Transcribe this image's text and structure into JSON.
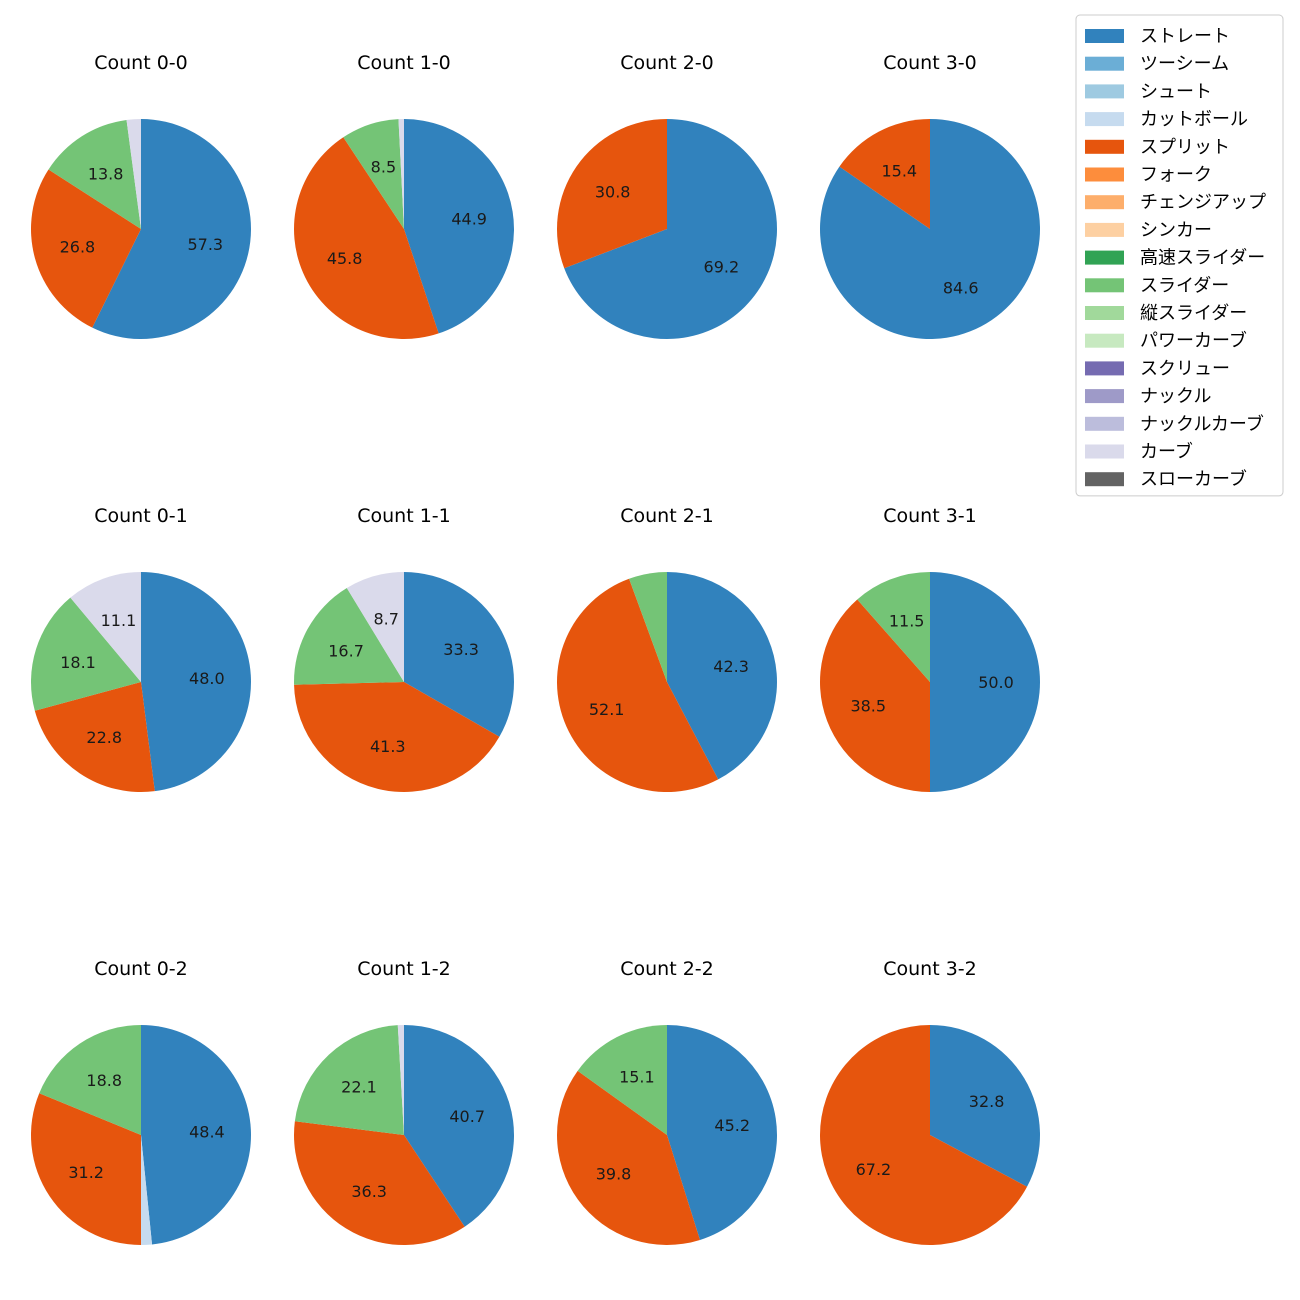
{
  "chart_data": {
    "type": "pie",
    "legend": {
      "placement": "top-right",
      "entries": [
        {
          "name": "ストレート",
          "color": "#3182bd"
        },
        {
          "name": "ツーシーム",
          "color": "#6baed6"
        },
        {
          "name": "シュート",
          "color": "#9ecae1"
        },
        {
          "name": "カットボール",
          "color": "#c6dbef"
        },
        {
          "name": "スプリット",
          "color": "#e6550d"
        },
        {
          "name": "フォーク",
          "color": "#fd8d3c"
        },
        {
          "name": "チェンジアップ",
          "color": "#fdae6b"
        },
        {
          "name": "シンカー",
          "color": "#fdd0a2"
        },
        {
          "name": "高速スライダー",
          "color": "#31a354"
        },
        {
          "name": "スライダー",
          "color": "#74c476"
        },
        {
          "name": "縦スライダー",
          "color": "#a1d99b"
        },
        {
          "name": "パワーカーブ",
          "color": "#c7e9c0"
        },
        {
          "name": "スクリュー",
          "color": "#756bb1"
        },
        {
          "name": "ナックル",
          "color": "#9e9ac8"
        },
        {
          "name": "ナックルカーブ",
          "color": "#bcbddc"
        },
        {
          "name": "カーブ",
          "color": "#dadaeb"
        },
        {
          "name": "スローカーブ",
          "color": "#636363"
        }
      ]
    },
    "pies": [
      {
        "title": "Count 0-0",
        "slices": [
          {
            "pitch": "ストレート",
            "value": 57.3,
            "label": "57.3"
          },
          {
            "pitch": "スプリット",
            "value": 26.8,
            "label": "26.8"
          },
          {
            "pitch": "スライダー",
            "value": 13.8,
            "label": "13.8"
          },
          {
            "pitch": "カーブ",
            "value": 2.1,
            "label": ""
          }
        ]
      },
      {
        "title": "Count 1-0",
        "slices": [
          {
            "pitch": "ストレート",
            "value": 44.9,
            "label": "44.9"
          },
          {
            "pitch": "スプリット",
            "value": 45.8,
            "label": "45.8"
          },
          {
            "pitch": "スライダー",
            "value": 8.5,
            "label": "8.5"
          },
          {
            "pitch": "カーブ",
            "value": 0.8,
            "label": ""
          }
        ]
      },
      {
        "title": "Count 2-0",
        "slices": [
          {
            "pitch": "ストレート",
            "value": 69.2,
            "label": "69.2"
          },
          {
            "pitch": "スプリット",
            "value": 30.8,
            "label": "30.8"
          }
        ]
      },
      {
        "title": "Count 3-0",
        "slices": [
          {
            "pitch": "ストレート",
            "value": 84.6,
            "label": "84.6"
          },
          {
            "pitch": "スプリット",
            "value": 15.4,
            "label": "15.4"
          }
        ]
      },
      {
        "title": "Count 0-1",
        "slices": [
          {
            "pitch": "ストレート",
            "value": 48.0,
            "label": "48.0"
          },
          {
            "pitch": "スプリット",
            "value": 22.8,
            "label": "22.8"
          },
          {
            "pitch": "スライダー",
            "value": 18.1,
            "label": "18.1"
          },
          {
            "pitch": "カーブ",
            "value": 11.1,
            "label": "11.1"
          }
        ]
      },
      {
        "title": "Count 1-1",
        "slices": [
          {
            "pitch": "ストレート",
            "value": 33.3,
            "label": "33.3"
          },
          {
            "pitch": "スプリット",
            "value": 41.3,
            "label": "41.3"
          },
          {
            "pitch": "スライダー",
            "value": 16.7,
            "label": "16.7"
          },
          {
            "pitch": "カーブ",
            "value": 8.7,
            "label": "8.7"
          }
        ]
      },
      {
        "title": "Count 2-1",
        "slices": [
          {
            "pitch": "ストレート",
            "value": 42.3,
            "label": "42.3"
          },
          {
            "pitch": "スプリット",
            "value": 52.1,
            "label": "52.1"
          },
          {
            "pitch": "スライダー",
            "value": 5.6,
            "label": ""
          }
        ]
      },
      {
        "title": "Count 3-1",
        "slices": [
          {
            "pitch": "ストレート",
            "value": 50.0,
            "label": "50.0"
          },
          {
            "pitch": "スプリット",
            "value": 38.5,
            "label": "38.5"
          },
          {
            "pitch": "スライダー",
            "value": 11.5,
            "label": "11.5"
          }
        ]
      },
      {
        "title": "Count 0-2",
        "slices": [
          {
            "pitch": "ストレート",
            "value": 48.4,
            "label": "48.4"
          },
          {
            "pitch": "カットボール",
            "value": 1.6,
            "label": ""
          },
          {
            "pitch": "スプリット",
            "value": 31.2,
            "label": "31.2"
          },
          {
            "pitch": "スライダー",
            "value": 18.8,
            "label": "18.8"
          }
        ]
      },
      {
        "title": "Count 1-2",
        "slices": [
          {
            "pitch": "ストレート",
            "value": 40.7,
            "label": "40.7"
          },
          {
            "pitch": "スプリット",
            "value": 36.3,
            "label": "36.3"
          },
          {
            "pitch": "スライダー",
            "value": 22.1,
            "label": "22.1"
          },
          {
            "pitch": "カーブ",
            "value": 0.9,
            "label": ""
          }
        ]
      },
      {
        "title": "Count 2-2",
        "slices": [
          {
            "pitch": "ストレート",
            "value": 45.2,
            "label": "45.2"
          },
          {
            "pitch": "スプリット",
            "value": 39.8,
            "label": "39.8"
          },
          {
            "pitch": "スライダー",
            "value": 15.1,
            "label": "15.1"
          }
        ]
      },
      {
        "title": "Count 3-2",
        "slices": [
          {
            "pitch": "ストレート",
            "value": 32.8,
            "label": "32.8"
          },
          {
            "pitch": "スプリット",
            "value": 67.2,
            "label": "67.2"
          }
        ]
      }
    ]
  }
}
